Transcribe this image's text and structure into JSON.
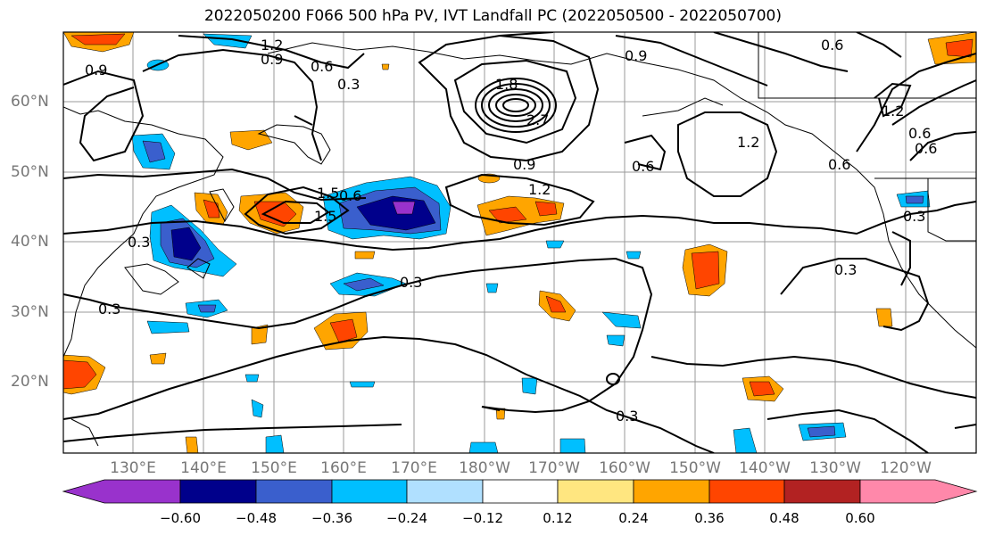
{
  "title": "2022050200 F066 500 hPa PV, IVT Landfall PC (2022050500 - 2022050700)",
  "lat_labels": [
    "60°N",
    "50°N",
    "40°N",
    "30°N",
    "20°N"
  ],
  "lon_labels": [
    "130°E",
    "140°E",
    "150°E",
    "160°E",
    "170°E",
    "180°W",
    "170°W",
    "160°W",
    "150°W",
    "140°W",
    "130°W",
    "120°W"
  ],
  "colorbar": {
    "ticks": [
      "−0.60",
      "−0.48",
      "−0.36",
      "−0.24",
      "−0.12",
      "0.12",
      "0.24",
      "0.36",
      "0.48",
      "0.60"
    ],
    "colors": [
      "#9932cc",
      "#00008b",
      "#3a5fcd",
      "#00bfff",
      "#b0e0ff",
      "#ffffff",
      "#ffe680",
      "#ffa500",
      "#ff4500",
      "#b22222",
      "#ff88aa"
    ]
  },
  "contour_labels": [
    "1.2",
    "0.9",
    "0.6",
    "0.3",
    "0.9",
    "0.9",
    "0.6",
    "1.2",
    "0.6",
    "0.6",
    "1.2",
    "0.6",
    "0.9",
    "1.2",
    "0.6",
    "1.5",
    "1.5",
    "0.3",
    "0.3",
    "0.3",
    "0.3",
    "0.3",
    "0.3",
    "0.6",
    "1.8",
    "2.7"
  ]
}
